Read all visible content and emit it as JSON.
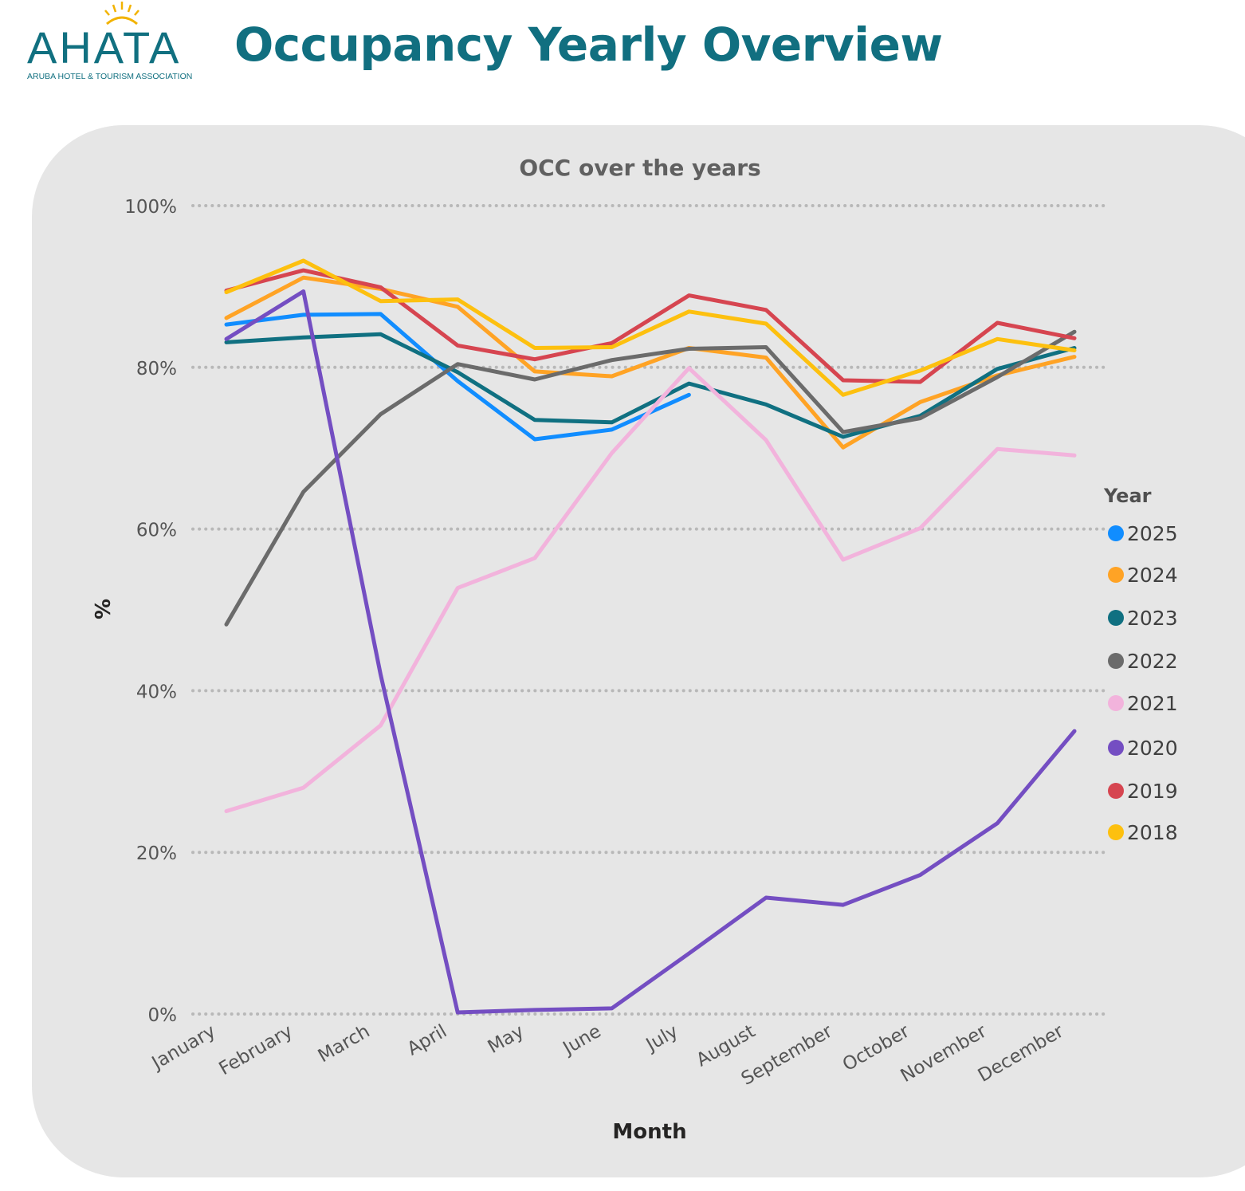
{
  "header": {
    "logo_word": "AHATA",
    "logo_tagline": "ARUBA HOTEL & TOURISM ASSOCIATION",
    "page_title": "Occupancy Yearly Overview"
  },
  "colors": {
    "brand": "#116f80",
    "card_background": "#e6e6e6",
    "sun": "#f2b300"
  },
  "chart_data": {
    "type": "line",
    "title": "OCC over the years",
    "xlabel": "Month",
    "ylabel": "%",
    "ylim": [
      0,
      100
    ],
    "yticks": [
      "0%",
      "20%",
      "40%",
      "60%",
      "80%",
      "100%"
    ],
    "grid": true,
    "legend_title": "Year",
    "legend_position": "right",
    "categories": [
      "January",
      "February",
      "March",
      "April",
      "May",
      "June",
      "July",
      "August",
      "September",
      "October",
      "November",
      "December"
    ],
    "series": [
      {
        "name": "2025",
        "color": "#118dff",
        "values": [
          85.3,
          86.5,
          86.6,
          78.3,
          71.1,
          72.3,
          76.6,
          null,
          null,
          null,
          null,
          null
        ]
      },
      {
        "name": "2024",
        "color": "#ffa325",
        "values": [
          86.1,
          91.1,
          89.7,
          87.5,
          79.5,
          78.9,
          82.4,
          81.2,
          70.1,
          75.7,
          79.0,
          81.3
        ]
      },
      {
        "name": "2023",
        "color": "#107081",
        "values": [
          83.1,
          83.7,
          84.1,
          79.4,
          73.5,
          73.2,
          78.0,
          75.4,
          71.4,
          74.0,
          79.8,
          82.4
        ]
      },
      {
        "name": "2022",
        "color": "#6b6b6b",
        "values": [
          48.2,
          64.6,
          74.2,
          80.4,
          78.5,
          80.9,
          82.3,
          82.5,
          72.0,
          73.7,
          78.8,
          84.4
        ]
      },
      {
        "name": "2021",
        "color": "#f2b3dc",
        "values": [
          25.1,
          28.0,
          35.7,
          52.7,
          56.4,
          69.4,
          79.9,
          71.0,
          56.2,
          60.1,
          69.9,
          69.1
        ]
      },
      {
        "name": "2020",
        "color": "#744ec2",
        "values": [
          83.5,
          89.4,
          42.0,
          0.2,
          0.5,
          0.7,
          7.5,
          14.4,
          13.5,
          17.2,
          23.6,
          35.0
        ]
      },
      {
        "name": "2019",
        "color": "#d64550",
        "values": [
          89.5,
          92.0,
          89.9,
          82.7,
          81.0,
          83.0,
          88.9,
          87.1,
          78.4,
          78.2,
          85.5,
          83.6
        ]
      },
      {
        "name": "2018",
        "color": "#fdc00f",
        "values": [
          89.3,
          93.2,
          88.2,
          88.4,
          82.4,
          82.5,
          86.9,
          85.4,
          76.6,
          79.6,
          83.5,
          82.1
        ]
      }
    ]
  }
}
